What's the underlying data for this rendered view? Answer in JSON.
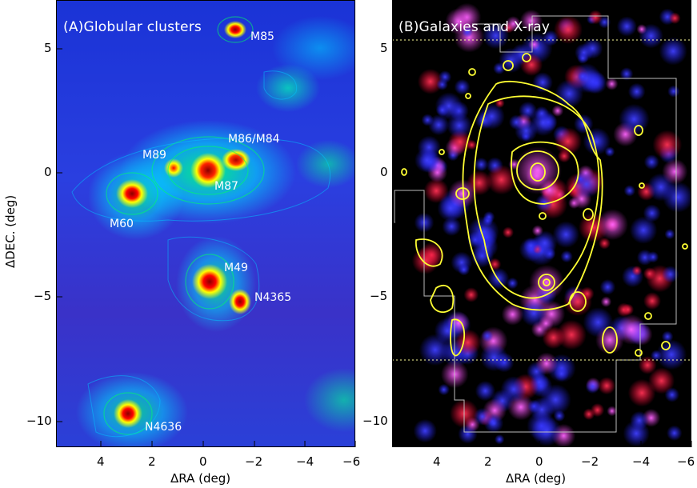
{
  "panels": {
    "a": {
      "title": "(A)Globular clusters",
      "labels": [
        "M85",
        "M86/M84",
        "M89",
        "M87",
        "M60",
        "M49",
        "N4365",
        "N4636"
      ]
    },
    "b": {
      "title": "(B)Galaxies and X-ray"
    }
  },
  "axes": {
    "xlabel": "ΔRA (deg)",
    "ylabel": "ΔDEC. (deg)",
    "x_ticks": [
      "4",
      "2",
      "0",
      "−2",
      "−4",
      "−6"
    ],
    "y_ticks": [
      "5",
      "0",
      "−5",
      "−10"
    ]
  },
  "colors": {
    "contour": "#ffff33",
    "footprint": "#bbbbbb",
    "blue_sources": "#2a2aff",
    "red_sources": "#ff2244"
  }
}
